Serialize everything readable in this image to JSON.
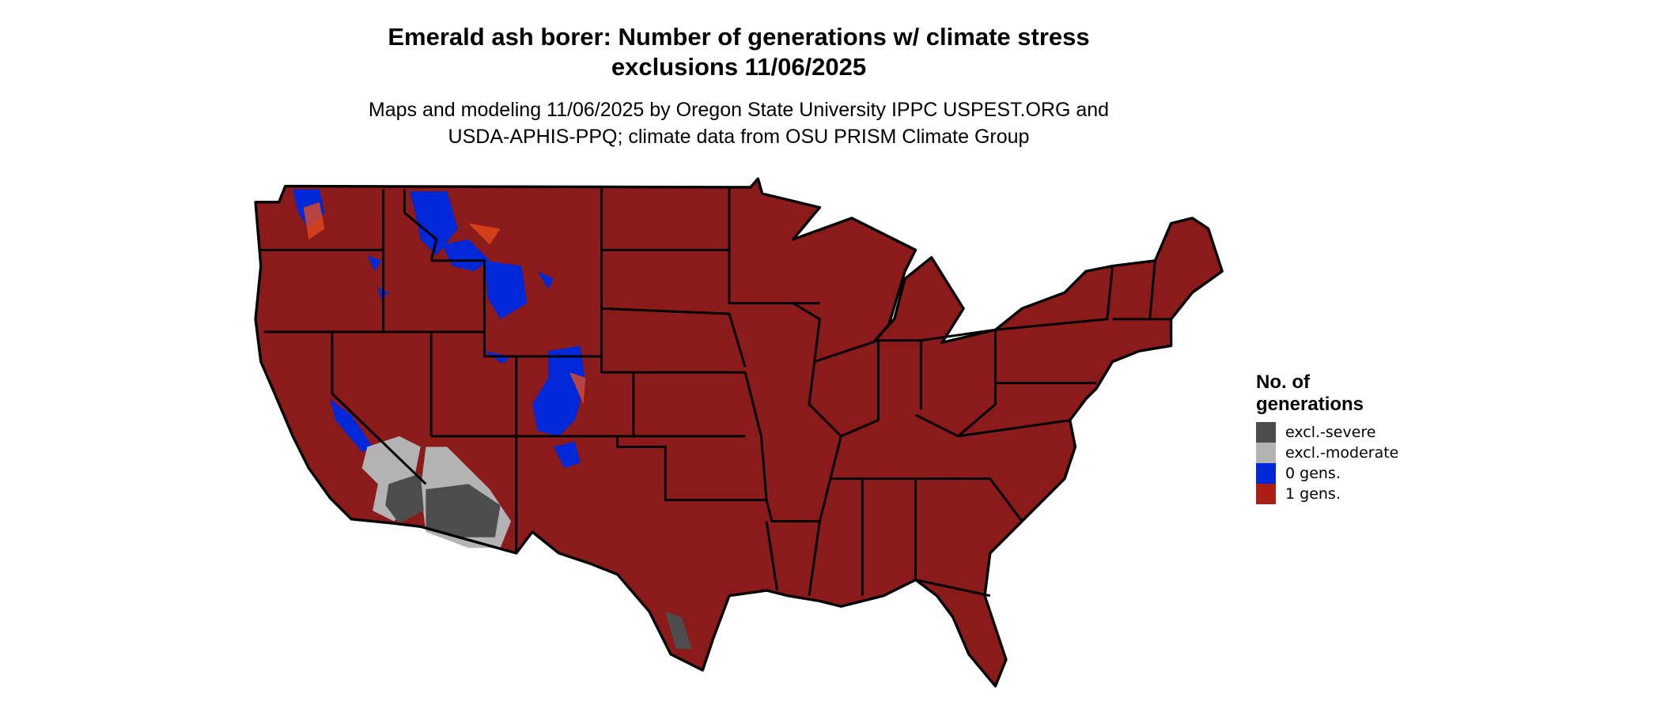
{
  "title": {
    "line1": "Emerald ash borer: Number of generations w/ climate stress",
    "line2": "exclusions 11/06/2025"
  },
  "subtitle": {
    "line1": "Maps and modeling 11/06/2025 by Oregon State University IPPC USPEST.ORG and",
    "line2": "USDA-APHIS-PPQ; climate data from OSU PRISM Climate Group"
  },
  "legend": {
    "title_line1": "No. of",
    "title_line2": "generations",
    "items": [
      {
        "label": "excl.-severe",
        "color": "#4d4d4d"
      },
      {
        "label": "excl.-moderate",
        "color": "#b3b3b3"
      },
      {
        "label": "0 gens.",
        "color": "#0028d8"
      },
      {
        "label": "1 gens.",
        "color": "#a91f14"
      }
    ]
  },
  "map": {
    "region": "Conterminous United States",
    "fill_color": "#8b1a1a",
    "border_color": "#000000"
  }
}
